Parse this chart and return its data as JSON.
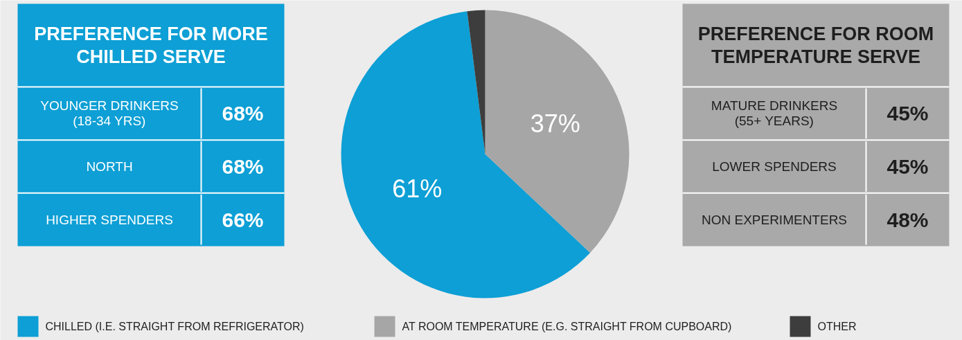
{
  "chart_data": [
    {
      "type": "other",
      "title": "PREFERENCE FOR MORE\nCHILLED SERVE",
      "annotations": [
        "YOUNGER DRINKERS\n(18-34 YRS)",
        "68%",
        "NORTH",
        "68%",
        "HIGHER SPENDERS",
        "66%"
      ]
    },
    {
      "type": "pie",
      "categories": [
        "CHILLED (I.E. STRAIGHT FROM REFRIGERATOR)",
        "AT ROOM TEMPERATURE (E.G. STRAIGHT FROM CUPBOARD)",
        "OTHER"
      ],
      "values": [
        61,
        37,
        2
      ],
      "colors": [
        "#0d9fd5",
        "#a6a6a6",
        "#3d3d3d"
      ],
      "value_labels": [
        "61%",
        "37%",
        null
      ],
      "legend": "bottom"
    },
    {
      "type": "other",
      "title": "PREFERENCE FOR ROOM\nTEMPERATURE SERVE",
      "annotations": [
        "MATURE DRINKERS\n(55+ YEARS)",
        "45%",
        "LOWER SPENDERS",
        "45%",
        "NON EXPERIMENTERS",
        "48%"
      ]
    }
  ]
}
